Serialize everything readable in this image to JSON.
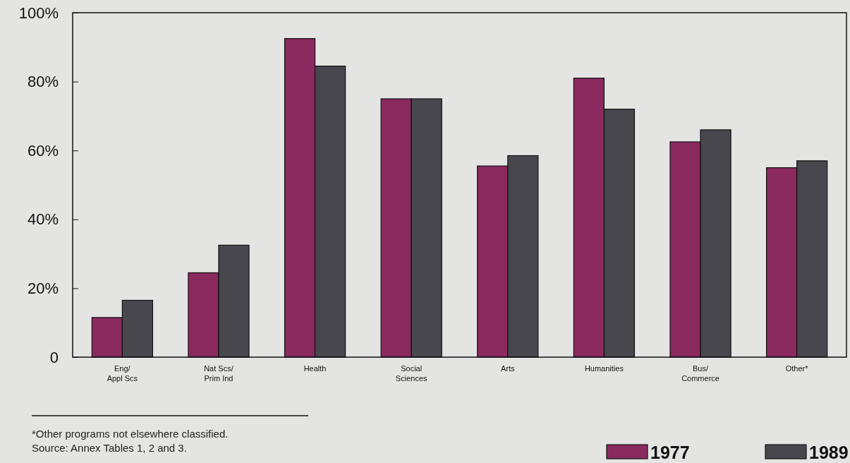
{
  "chart_data": {
    "type": "bar",
    "categories": [
      "Eng/\nAppl Scs",
      "Nat Scs/\nPrim Ind",
      "Health",
      "Social\nSciences",
      "Arts",
      "Humanities",
      "Bus/\nCommerce",
      "Other*"
    ],
    "series": [
      {
        "name": "1977",
        "color": "#8b2a5f",
        "values": [
          11.5,
          24.5,
          92.5,
          75,
          55.5,
          81,
          62.5,
          55
        ]
      },
      {
        "name": "1989",
        "color": "#48474d",
        "values": [
          16.5,
          32.5,
          84.5,
          75,
          58.5,
          72,
          66,
          57
        ]
      }
    ],
    "ylim": [
      0,
      100
    ],
    "yticks": [
      {
        "value": 0,
        "label": "0"
      },
      {
        "value": 20,
        "label": "20%"
      },
      {
        "value": 40,
        "label": "40%"
      },
      {
        "value": 60,
        "label": "60%"
      },
      {
        "value": 80,
        "label": "80%"
      },
      {
        "value": 100,
        "label": "100%"
      }
    ],
    "grid": false,
    "legend": "bottom right",
    "annotations": [
      "*Other programs not elsewhere classified.",
      "Source: Annex Tables 1, 2 and 3."
    ]
  }
}
